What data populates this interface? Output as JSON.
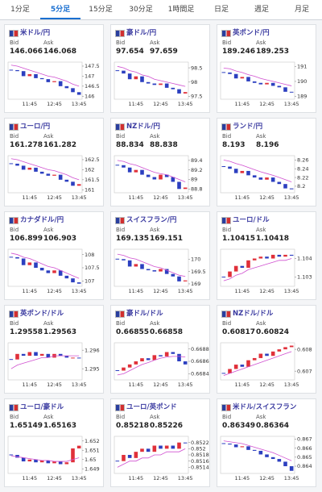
{
  "tabs": [
    "1分足",
    "5分足",
    "15分足",
    "30分足",
    "1時間足",
    "日足",
    "週足",
    "月足"
  ],
  "active_tab": 1,
  "chart_colors": {
    "up": "#e0303a",
    "down": "#2c3fc0",
    "ma": "#d050d0"
  },
  "panels": [
    {
      "name": "米ドル/円",
      "bid_label": "Bid",
      "ask_label": "Ask",
      "bid": "146.066",
      "ask": "146.068",
      "chart_data": {
        "type": "candlestick",
        "categories": [
          null,
          null,
          null,
          "11:45",
          null,
          null,
          null,
          "12:45",
          null,
          null,
          null,
          "13:45"
        ],
        "values": [
          147.3,
          147.25,
          147.0,
          147.1,
          146.9,
          146.85,
          146.7,
          146.75,
          146.5,
          146.4,
          146.2,
          146.07
        ],
        "moving_average": [
          147.55,
          147.5,
          147.4,
          147.3,
          147.2,
          147.1,
          147.0,
          146.95,
          146.85,
          146.75,
          146.6,
          146.5
        ],
        "ylim": [
          145.85,
          147.7
        ],
        "yticks": [
          147.5,
          147,
          146.5,
          146
        ]
      }
    },
    {
      "name": "豪ドル/円",
      "bid_label": "Bid",
      "ask_label": "Ask",
      "bid": "97.654",
      "ask": "97.659",
      "chart_data": {
        "type": "candlestick",
        "categories": [
          null,
          null,
          null,
          "11:45",
          null,
          null,
          null,
          "12:45",
          null,
          null,
          null,
          "13:45"
        ],
        "values": [
          98.4,
          98.3,
          98.1,
          98.2,
          98.0,
          97.95,
          97.9,
          97.95,
          97.8,
          97.75,
          97.6,
          97.65
        ],
        "moving_average": [
          98.55,
          98.5,
          98.4,
          98.35,
          98.25,
          98.2,
          98.1,
          98.05,
          98.0,
          97.95,
          97.9,
          97.85
        ],
        "ylim": [
          97.4,
          98.7
        ],
        "yticks": [
          98.5,
          98,
          97.5
        ]
      }
    },
    {
      "name": "英ポンド/円",
      "bid_label": "Bid",
      "ask_label": "Ask",
      "bid": "189.246",
      "ask": "189.253",
      "chart_data": {
        "type": "candlestick",
        "categories": [
          null,
          null,
          null,
          "11:45",
          null,
          null,
          null,
          "12:45",
          null,
          null,
          null,
          "13:45"
        ],
        "values": [
          190.6,
          190.5,
          190.2,
          190.3,
          190.0,
          189.9,
          189.8,
          189.9,
          189.7,
          189.6,
          189.3,
          189.25
        ],
        "moving_average": [
          190.9,
          190.85,
          190.7,
          190.6,
          190.45,
          190.35,
          190.2,
          190.1,
          190.0,
          189.9,
          189.8,
          189.7
        ],
        "ylim": [
          188.8,
          191.3
        ],
        "yticks": [
          191,
          190,
          189
        ]
      }
    },
    {
      "name": "ユーロ/円",
      "bid_label": "Bid",
      "ask_label": "Ask",
      "bid": "161.278",
      "ask": "161.282",
      "chart_data": {
        "type": "candlestick",
        "categories": [
          null,
          null,
          null,
          "11:45",
          null,
          null,
          null,
          "12:45",
          null,
          null,
          null,
          "13:45"
        ],
        "values": [
          162.3,
          162.2,
          162.0,
          162.1,
          161.9,
          161.8,
          161.7,
          161.75,
          161.5,
          161.4,
          161.2,
          161.28
        ],
        "moving_average": [
          162.55,
          162.5,
          162.4,
          162.3,
          162.2,
          162.1,
          162.0,
          161.95,
          161.85,
          161.75,
          161.6,
          161.5
        ],
        "ylim": [
          160.85,
          162.7
        ],
        "yticks": [
          162.5,
          162,
          161.5,
          161
        ]
      }
    },
    {
      "name": "NZドル/円",
      "bid_label": "Bid",
      "ask_label": "Ask",
      "bid": "88.834",
      "ask": "88.838",
      "chart_data": {
        "type": "candlestick",
        "categories": [
          null,
          null,
          null,
          "11:45",
          null,
          null,
          null,
          "12:45",
          null,
          null,
          null,
          "13:45"
        ],
        "values": [
          89.3,
          89.25,
          89.15,
          89.2,
          89.1,
          89.05,
          89.0,
          89.1,
          89.05,
          88.95,
          88.8,
          88.83
        ],
        "moving_average": [
          89.4,
          89.38,
          89.33,
          89.3,
          89.25,
          89.2,
          89.15,
          89.12,
          89.1,
          89.05,
          89.0,
          88.95
        ],
        "ylim": [
          88.72,
          89.5
        ],
        "yticks": [
          89.4,
          89.2,
          89,
          88.8
        ]
      }
    },
    {
      "name": "ランド/円",
      "bid_label": "Bid",
      "ask_label": "Ask",
      "bid": "8.193",
      "ask": "8.196",
      "chart_data": {
        "type": "candlestick",
        "categories": [
          null,
          null,
          null,
          "11:45",
          null,
          null,
          null,
          "12:45",
          null,
          null,
          null,
          "13:45"
        ],
        "values": [
          8.245,
          8.24,
          8.23,
          8.235,
          8.225,
          8.22,
          8.215,
          8.22,
          8.21,
          8.205,
          8.195,
          8.193
        ],
        "moving_average": [
          8.26,
          8.257,
          8.252,
          8.248,
          8.243,
          8.238,
          8.233,
          8.229,
          8.225,
          8.22,
          8.215,
          8.21
        ],
        "ylim": [
          8.185,
          8.27
        ],
        "yticks": [
          8.26,
          8.24,
          8.22,
          8.2
        ]
      }
    },
    {
      "name": "カナダドル/円",
      "bid_label": "Bid",
      "ask_label": "Ask",
      "bid": "106.899",
      "ask": "106.903",
      "chart_data": {
        "type": "candlestick",
        "categories": [
          null,
          null,
          null,
          "11:45",
          null,
          null,
          null,
          "12:45",
          null,
          null,
          null,
          "13:45"
        ],
        "values": [
          107.9,
          107.85,
          107.6,
          107.7,
          107.5,
          107.4,
          107.3,
          107.4,
          107.2,
          107.1,
          106.95,
          106.9
        ],
        "moving_average": [
          108.05,
          108.0,
          107.9,
          107.85,
          107.75,
          107.65,
          107.55,
          107.5,
          107.4,
          107.3,
          107.2,
          107.1
        ],
        "ylim": [
          106.8,
          108.2
        ],
        "yticks": [
          108,
          107.5,
          107
        ]
      }
    },
    {
      "name": "スイスフラン/円",
      "bid_label": "Bid",
      "ask_label": "Ask",
      "bid": "169.135",
      "ask": "169.151",
      "chart_data": {
        "type": "candlestick",
        "categories": [
          null,
          null,
          null,
          "11:45",
          null,
          null,
          null,
          "12:45",
          null,
          null,
          null,
          "13:45"
        ],
        "values": [
          170.0,
          169.95,
          169.7,
          169.8,
          169.6,
          169.55,
          169.5,
          169.6,
          169.4,
          169.3,
          169.1,
          169.14
        ],
        "moving_average": [
          170.2,
          170.15,
          170.05,
          170.0,
          169.9,
          169.8,
          169.7,
          169.65,
          169.55,
          169.45,
          169.35,
          169.3
        ],
        "ylim": [
          168.9,
          170.4
        ],
        "yticks": [
          170,
          169.5,
          169
        ]
      }
    },
    {
      "name": "ユーロ/ドル",
      "bid_label": "Bid",
      "ask_label": "Ask",
      "bid": "1.10415",
      "ask": "1.10418",
      "chart_data": {
        "type": "candlestick",
        "categories": [
          null,
          null,
          null,
          "11:45",
          null,
          null,
          null,
          "12:45",
          null,
          null,
          null,
          "13:45"
        ],
        "values": [
          1.103,
          1.1033,
          1.1036,
          1.1035,
          1.1039,
          1.104,
          1.1041,
          1.104,
          1.1042,
          1.1041,
          1.1042,
          1.10415
        ],
        "moving_average": [
          1.1028,
          1.1029,
          1.1031,
          1.1032,
          1.1034,
          1.1035,
          1.1036,
          1.1037,
          1.1038,
          1.1039,
          1.1039,
          1.104
        ],
        "ylim": [
          1.1025,
          1.1045
        ],
        "yticks": [
          1.104,
          1.103
        ]
      }
    },
    {
      "name": "英ポンド/ドル",
      "bid_label": "Bid",
      "ask_label": "Ask",
      "bid": "1.29558",
      "ask": "1.29563",
      "chart_data": {
        "type": "candlestick",
        "categories": [
          null,
          null,
          null,
          "11:45",
          null,
          null,
          null,
          "12:45",
          null,
          null,
          null,
          "13:45"
        ],
        "values": [
          1.2955,
          1.2958,
          1.2957,
          1.2959,
          1.2957,
          1.2958,
          1.2956,
          1.2958,
          1.2957,
          1.2956,
          1.2956,
          1.29558
        ],
        "moving_average": [
          1.295,
          1.2952,
          1.2953,
          1.2954,
          1.2955,
          1.2956,
          1.2956,
          1.2957,
          1.2957,
          1.2957,
          1.2957,
          1.2957
        ],
        "ylim": [
          1.2944,
          1.2964
        ],
        "yticks": [
          1.296,
          1.295
        ]
      }
    },
    {
      "name": "豪ドル/ドル",
      "bid_label": "Bid",
      "ask_label": "Ask",
      "bid": "0.66855",
      "ask": "0.66858",
      "chart_data": {
        "type": "candlestick",
        "categories": [
          null,
          null,
          null,
          "11:45",
          null,
          null,
          null,
          "12:45",
          null,
          null,
          null,
          "13:45"
        ],
        "values": [
          0.66845,
          0.6685,
          0.66855,
          0.6686,
          0.66865,
          0.66862,
          0.6687,
          0.66868,
          0.66875,
          0.66872,
          0.6686,
          0.66855
        ],
        "moving_average": [
          0.66838,
          0.6684,
          0.66845,
          0.6685,
          0.66855,
          0.66858,
          0.66862,
          0.66865,
          0.66867,
          0.66868,
          0.66868,
          0.66867
        ],
        "ylim": [
          0.6683,
          0.6689
        ],
        "yticks": [
          0.6688,
          0.6686,
          0.6684
        ]
      }
    },
    {
      "name": "NZドル/ドル",
      "bid_label": "Bid",
      "ask_label": "Ask",
      "bid": "0.60817",
      "ask": "0.60824",
      "chart_data": {
        "type": "candlestick",
        "categories": [
          null,
          null,
          null,
          "11:45",
          null,
          null,
          null,
          "12:45",
          null,
          null,
          null,
          "13:45"
        ],
        "values": [
          0.6069,
          0.6071,
          0.6073,
          0.6072,
          0.6075,
          0.6076,
          0.6078,
          0.6077,
          0.6079,
          0.608,
          0.6081,
          0.60817
        ],
        "moving_average": [
          0.6068,
          0.6069,
          0.607,
          0.6071,
          0.6072,
          0.6073,
          0.6074,
          0.6075,
          0.6076,
          0.6077,
          0.6078,
          0.6079
        ],
        "ylim": [
          0.6066,
          0.6083
        ],
        "yticks": [
          0.608,
          0.607
        ]
      }
    },
    {
      "name": "ユーロ/豪ドル",
      "bid_label": "Bid",
      "ask_label": "Ask",
      "bid": "1.65149",
      "ask": "1.65163",
      "chart_data": {
        "type": "candlestick",
        "categories": [
          null,
          null,
          null,
          "11:45",
          null,
          null,
          null,
          "12:45",
          null,
          null,
          null,
          "13:45"
        ],
        "values": [
          1.6505,
          1.6502,
          1.6498,
          1.65,
          1.6497,
          1.6499,
          1.6496,
          1.6498,
          1.6495,
          1.6497,
          1.6512,
          1.65149
        ],
        "moving_average": [
          1.6504,
          1.6503,
          1.6502,
          1.6501,
          1.65,
          1.6499,
          1.6499,
          1.6498,
          1.6498,
          1.6498,
          1.65,
          1.6502
        ],
        "ylim": [
          1.6485,
          1.6525
        ],
        "yticks": [
          1.652,
          1.651,
          1.65,
          1.649
        ]
      }
    },
    {
      "name": "ユーロ/英ポンド",
      "bid_label": "Bid",
      "ask_label": "Ask",
      "bid": "0.85218",
      "ask": "0.85226",
      "chart_data": {
        "type": "candlestick",
        "categories": [
          null,
          null,
          null,
          "11:45",
          null,
          null,
          null,
          "12:45",
          null,
          null,
          null,
          "13:45"
        ],
        "values": [
          0.8516,
          0.8518,
          0.8517,
          0.8519,
          0.852,
          0.8519,
          0.8521,
          0.852,
          0.8521,
          0.852,
          0.8522,
          0.85218
        ],
        "moving_average": [
          0.8514,
          0.8515,
          0.8516,
          0.8516,
          0.8517,
          0.8517,
          0.8518,
          0.8518,
          0.8519,
          0.8519,
          0.8519,
          0.852
        ],
        "ylim": [
          0.8512,
          0.8524
        ],
        "yticks": [
          0.8522,
          0.852,
          0.8518,
          0.8516,
          0.8514
        ]
      }
    },
    {
      "name": "米ドル/スイスフラン",
      "bid_label": "Bid",
      "ask_label": "Ask",
      "bid": "0.86349",
      "ask": "0.86364",
      "chart_data": {
        "type": "candlestick",
        "categories": [
          null,
          null,
          null,
          "11:45",
          null,
          null,
          null,
          "12:45",
          null,
          null,
          null,
          "13:45"
        ],
        "values": [
          0.8665,
          0.8664,
          0.8661,
          0.8662,
          0.8658,
          0.8657,
          0.8653,
          0.865,
          0.8648,
          0.8645,
          0.864,
          0.86349
        ],
        "moving_average": [
          0.8668,
          0.8667,
          0.8666,
          0.8665,
          0.8663,
          0.8661,
          0.8659,
          0.8657,
          0.8655,
          0.8652,
          0.8649,
          0.8646
        ],
        "ylim": [
          0.8632,
          0.8673
        ],
        "yticks": [
          0.867,
          0.866,
          0.865,
          0.864
        ]
      }
    }
  ]
}
